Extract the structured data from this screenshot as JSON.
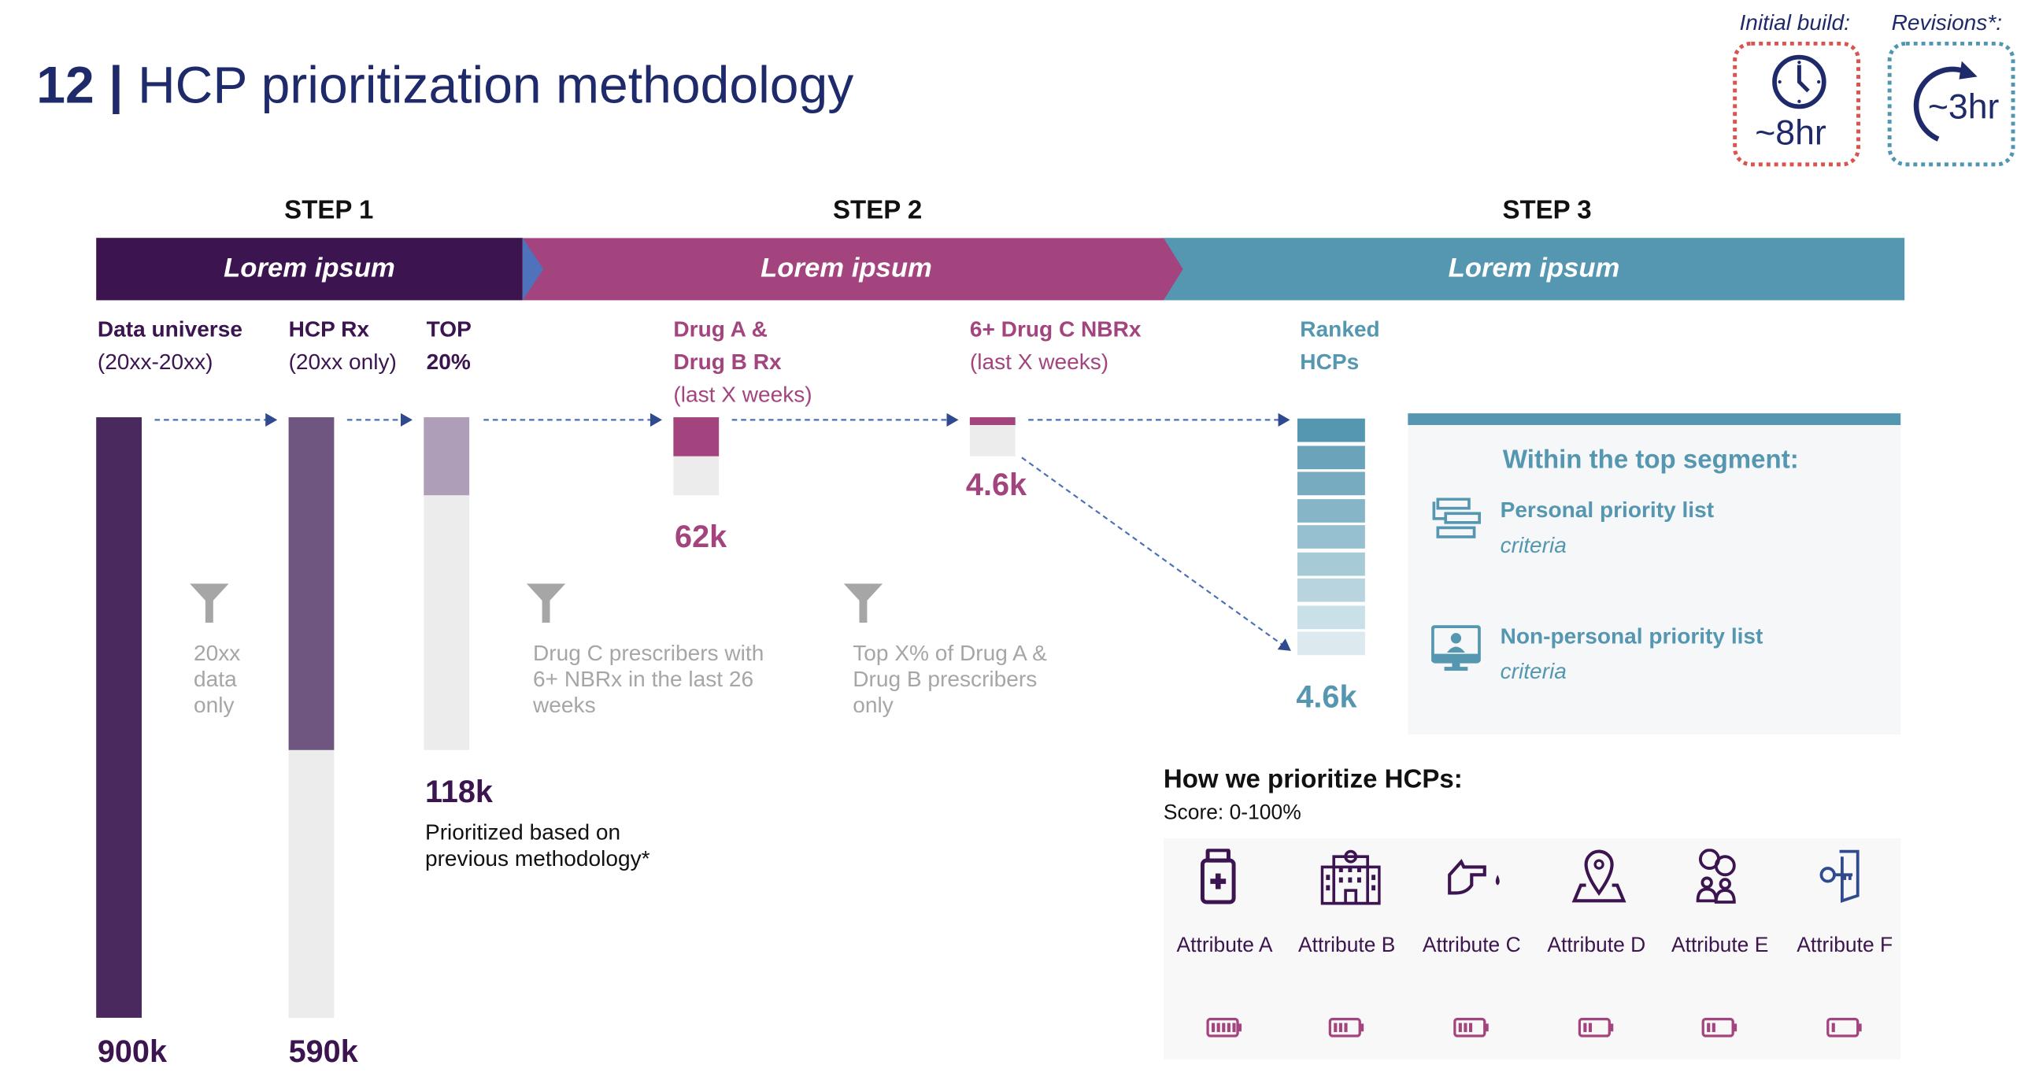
{
  "header": {
    "number": "12",
    "separator": "|",
    "title": "HCP prioritization methodology"
  },
  "timing": {
    "initial_label": "Initial build:",
    "initial_value": "~8hr",
    "initial_icon": "clock-icon",
    "initial_color": "#d9534f",
    "revisions_label": "Revisions*:",
    "revisions_value": "~3hr",
    "revisions_icon": "circular-arrow-icon",
    "revisions_color": "#4f97b0"
  },
  "steps": [
    {
      "label": "STEP 1",
      "banner": "Lorem ipsum",
      "color": "#3b1450"
    },
    {
      "label": "STEP 2",
      "banner": "Lorem ipsum",
      "color": "#a3447f"
    },
    {
      "label": "STEP 3",
      "banner": "Lorem ipsum",
      "color": "#5596b0"
    }
  ],
  "columns": {
    "data_universe": {
      "title": "Data universe",
      "sub": "(20xx-20xx)",
      "value": "900k"
    },
    "hcp_rx": {
      "title": "HCP Rx",
      "sub": "(20xx only)",
      "value": "590k"
    },
    "top": {
      "title": "TOP",
      "sub": "20%",
      "value": "118k",
      "note": "Prioritized based on previous methodology*"
    },
    "drug_ab": {
      "title1": "Drug A &",
      "title2": "Drug B Rx",
      "sub": "(last X weeks)",
      "value": "62k"
    },
    "drug_c": {
      "title": "6+ Drug C NBRx",
      "sub": "(last X weeks)",
      "value": "4.6k"
    },
    "ranked": {
      "title1": "Ranked",
      "title2": "HCPs",
      "value": "4.6k"
    }
  },
  "filters": [
    {
      "icon": "funnel-icon",
      "text": "20xx data only"
    },
    {
      "icon": "funnel-icon",
      "text": "Drug C prescribers with 6+ NBRx in the last 26 weeks"
    },
    {
      "icon": "funnel-icon",
      "text": "Top X% of Drug A & Drug B prescribers only"
    }
  ],
  "segment_panel": {
    "heading": "Within the top segment:",
    "items": [
      {
        "icon": "priority-list-icon",
        "title": "Personal priority list",
        "sub": "criteria"
      },
      {
        "icon": "monitor-person-icon",
        "title": "Non-personal priority list",
        "sub": "criteria"
      }
    ]
  },
  "prioritize": {
    "title": "How we prioritize HCPs:",
    "score": "Score: 0-100%",
    "attributes": [
      {
        "label": "Attribute A",
        "icon": "medicine-bottle-icon",
        "level": 5,
        "max": 5
      },
      {
        "label": "Attribute B",
        "icon": "hospital-icon",
        "level": 3,
        "max": 5
      },
      {
        "label": "Attribute C",
        "icon": "hand-pointing-drop-icon",
        "level": 3,
        "max": 5
      },
      {
        "label": "Attribute D",
        "icon": "map-pin-icon",
        "level": 2,
        "max": 5
      },
      {
        "label": "Attribute E",
        "icon": "people-chat-icon",
        "level": 2,
        "max": 5
      },
      {
        "label": "Attribute F",
        "icon": "key-door-icon",
        "level": 1,
        "max": 5
      }
    ]
  }
}
